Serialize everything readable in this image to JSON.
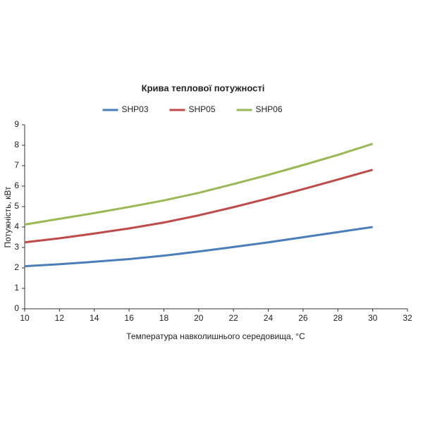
{
  "chart_data": {
    "type": "line",
    "title": "Крива теплової потужності",
    "x_label": "Температура навколишнього середовища, °С",
    "y_label": "Потужність, кВт",
    "x": [
      10,
      12,
      14,
      16,
      18,
      20,
      22,
      24,
      26,
      28,
      30
    ],
    "series": [
      {
        "name": "SHP03",
        "color": "#4a7ebb",
        "values": [
          2.08,
          2.18,
          2.3,
          2.43,
          2.6,
          2.8,
          3.02,
          3.25,
          3.5,
          3.75,
          4.0
        ]
      },
      {
        "name": "SHP05",
        "color": "#be4b48",
        "values": [
          3.25,
          3.45,
          3.68,
          3.93,
          4.22,
          4.57,
          4.97,
          5.4,
          5.85,
          6.32,
          6.8
        ]
      },
      {
        "name": "SHP06",
        "color": "#98b954",
        "values": [
          4.12,
          4.4,
          4.68,
          4.98,
          5.3,
          5.67,
          6.1,
          6.55,
          7.03,
          7.53,
          8.07
        ]
      }
    ],
    "xlim": [
      10,
      32
    ],
    "xticks": [
      10,
      12,
      14,
      16,
      18,
      20,
      22,
      24,
      26,
      28,
      30,
      32
    ],
    "ylim": [
      0,
      9
    ],
    "yticks": [
      0,
      1,
      2,
      3,
      4,
      5,
      6,
      7,
      8,
      9
    ],
    "grid": false,
    "legend": "top"
  }
}
